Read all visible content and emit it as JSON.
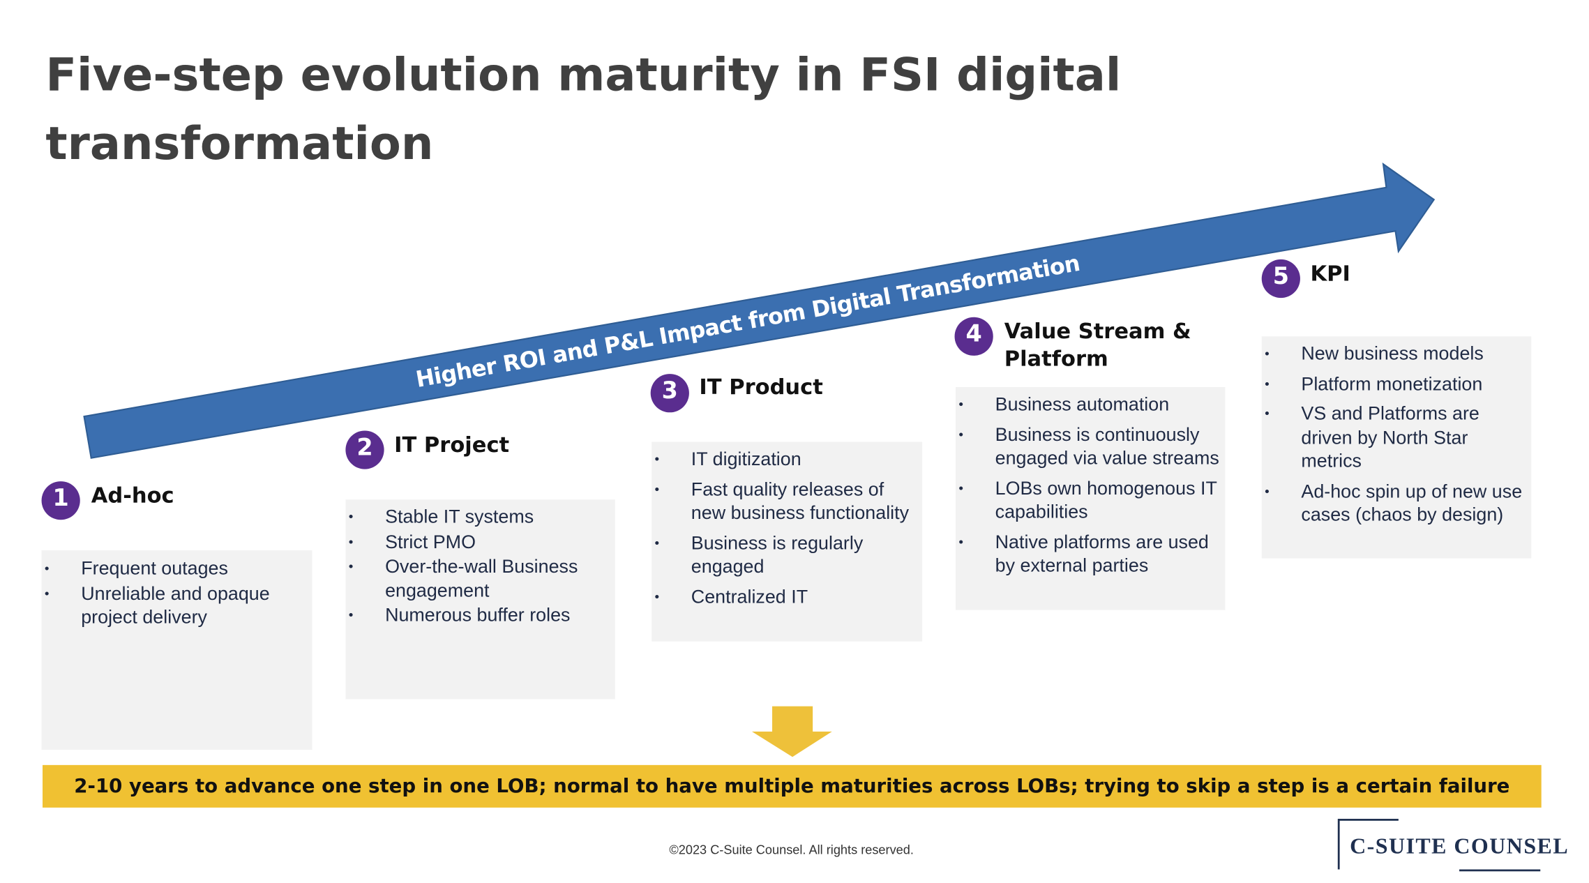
{
  "title": "Five-step evolution maturity in FSI digital transformation",
  "arrow_label": "Higher ROI and P&L Impact from Digital Transformation",
  "steps": [
    {
      "number": "1",
      "title": "Ad-hoc",
      "bullets": [
        "Frequent outages",
        "Unreliable and opaque project delivery"
      ]
    },
    {
      "number": "2",
      "title": "IT Project",
      "bullets": [
        "Stable IT systems",
        "Strict PMO",
        "Over-the-wall Business engagement",
        "Numerous buffer roles"
      ]
    },
    {
      "number": "3",
      "title": "IT Product",
      "bullets": [
        "IT digitization",
        "Fast quality releases of new business functionality",
        "Business is regularly engaged",
        "Centralized IT"
      ]
    },
    {
      "number": "4",
      "title": "Value Stream & Platform",
      "bullets": [
        "Business automation",
        "Business is continuously engaged via value streams",
        "LOBs own homogenous IT capabilities",
        "Native platforms are used by external parties"
      ]
    },
    {
      "number": "5",
      "title": "KPI",
      "bullets": [
        "New business models",
        "Platform monetization",
        "VS and Platforms are driven by North Star metrics",
        "Ad-hoc spin up of new use cases (chaos by design)"
      ]
    }
  ],
  "banner": "2-10 years to advance one step in one LOB; normal to have multiple maturities across LOBs; trying to skip a step is a certain failure",
  "footer": "©2023 C-Suite Counsel.  All rights reserved.",
  "logo": "C-SUITE COUNSEL"
}
